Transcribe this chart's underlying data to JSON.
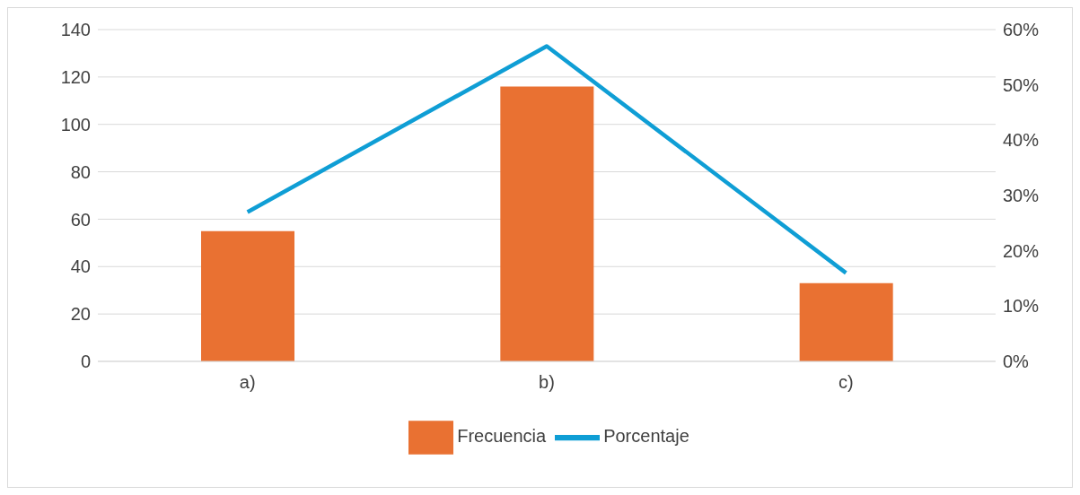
{
  "chart_data": {
    "type": "bar",
    "categories": [
      "a)",
      "b)",
      "c)"
    ],
    "series": [
      {
        "name": "Frecuencia",
        "color": "#e97132",
        "values": [
          55,
          116,
          33
        ]
      },
      {
        "name": "Porcentaje",
        "type": "line",
        "axis": "y2",
        "color": "#0f9ed5",
        "values": [
          27,
          57,
          16
        ]
      }
    ],
    "ylim": [
      0,
      140
    ],
    "yticks": [
      0,
      20,
      40,
      60,
      80,
      100,
      120,
      140
    ],
    "y2lim": [
      0,
      60
    ],
    "y2ticks": [
      {
        "value": 0,
        "label": "0%"
      },
      {
        "value": 10,
        "label": "10%"
      },
      {
        "value": 20,
        "label": "20%"
      },
      {
        "value": 30,
        "label": "30%"
      },
      {
        "value": 40,
        "label": "40%"
      },
      {
        "value": 50,
        "label": "50%"
      },
      {
        "value": 60,
        "label": "60%"
      }
    ],
    "grid": "y",
    "legend": "bottom",
    "marker": "none",
    "line_style": "solid"
  }
}
